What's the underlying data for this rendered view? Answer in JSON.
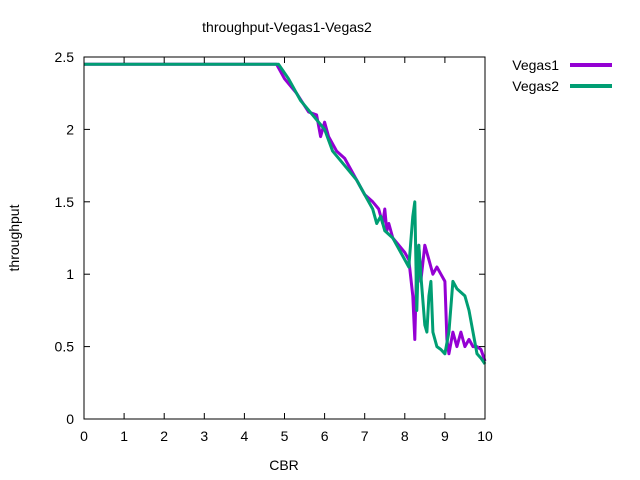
{
  "chart_data": {
    "type": "line",
    "title": "throughput-Vegas1-Vegas2",
    "xlabel": "CBR",
    "ylabel": "throughput",
    "xlim": [
      0,
      10
    ],
    "ylim": [
      0,
      2.5
    ],
    "x_ticks": [
      "0",
      "1",
      "2",
      "3",
      "4",
      "5",
      "6",
      "7",
      "8",
      "9",
      "10"
    ],
    "y_ticks": [
      "0",
      "0.5",
      "1",
      "1.5",
      "2",
      "2.5"
    ],
    "legend_position": "outside-top-right",
    "grid": false,
    "series": [
      {
        "name": "Vegas1",
        "color": "#9400d3",
        "points": [
          [
            0,
            2.45
          ],
          [
            4.8,
            2.45
          ],
          [
            5.0,
            2.35
          ],
          [
            5.3,
            2.25
          ],
          [
            5.6,
            2.12
          ],
          [
            5.8,
            2.1
          ],
          [
            5.9,
            1.95
          ],
          [
            6.0,
            2.05
          ],
          [
            6.1,
            1.95
          ],
          [
            6.3,
            1.85
          ],
          [
            6.5,
            1.8
          ],
          [
            6.8,
            1.65
          ],
          [
            7.0,
            1.55
          ],
          [
            7.2,
            1.5
          ],
          [
            7.35,
            1.45
          ],
          [
            7.45,
            1.35
          ],
          [
            7.5,
            1.45
          ],
          [
            7.55,
            1.3
          ],
          [
            7.6,
            1.35
          ],
          [
            7.7,
            1.25
          ],
          [
            7.85,
            1.2
          ],
          [
            8.0,
            1.15
          ],
          [
            8.1,
            1.1
          ],
          [
            8.2,
            0.85
          ],
          [
            8.25,
            0.55
          ],
          [
            8.3,
            1.1
          ],
          [
            8.35,
            1.2
          ],
          [
            8.4,
            0.95
          ],
          [
            8.5,
            1.2
          ],
          [
            8.6,
            1.1
          ],
          [
            8.7,
            1.0
          ],
          [
            8.8,
            1.05
          ],
          [
            8.9,
            1.0
          ],
          [
            9.0,
            0.95
          ],
          [
            9.05,
            0.55
          ],
          [
            9.1,
            0.45
          ],
          [
            9.2,
            0.6
          ],
          [
            9.3,
            0.5
          ],
          [
            9.4,
            0.6
          ],
          [
            9.5,
            0.5
          ],
          [
            9.6,
            0.55
          ],
          [
            9.7,
            0.5
          ],
          [
            9.8,
            0.5
          ],
          [
            9.9,
            0.48
          ],
          [
            10.0,
            0.4
          ]
        ]
      },
      {
        "name": "Vegas2",
        "color": "#009e73",
        "points": [
          [
            0,
            2.45
          ],
          [
            4.85,
            2.45
          ],
          [
            5.1,
            2.35
          ],
          [
            5.4,
            2.2
          ],
          [
            5.7,
            2.1
          ],
          [
            5.85,
            2.05
          ],
          [
            6.0,
            2.0
          ],
          [
            6.2,
            1.85
          ],
          [
            6.5,
            1.75
          ],
          [
            6.8,
            1.65
          ],
          [
            7.0,
            1.55
          ],
          [
            7.2,
            1.45
          ],
          [
            7.3,
            1.35
          ],
          [
            7.4,
            1.4
          ],
          [
            7.5,
            1.3
          ],
          [
            7.7,
            1.25
          ],
          [
            7.9,
            1.15
          ],
          [
            8.1,
            1.05
          ],
          [
            8.2,
            1.4
          ],
          [
            8.25,
            1.5
          ],
          [
            8.3,
            0.75
          ],
          [
            8.35,
            1.2
          ],
          [
            8.4,
            1.0
          ],
          [
            8.5,
            0.65
          ],
          [
            8.55,
            0.6
          ],
          [
            8.6,
            0.85
          ],
          [
            8.65,
            0.95
          ],
          [
            8.7,
            0.6
          ],
          [
            8.8,
            0.5
          ],
          [
            8.9,
            0.48
          ],
          [
            9.0,
            0.45
          ],
          [
            9.1,
            0.6
          ],
          [
            9.2,
            0.95
          ],
          [
            9.3,
            0.9
          ],
          [
            9.5,
            0.85
          ],
          [
            9.6,
            0.75
          ],
          [
            9.7,
            0.6
          ],
          [
            9.8,
            0.45
          ],
          [
            9.9,
            0.42
          ],
          [
            10.0,
            0.38
          ]
        ]
      }
    ]
  }
}
